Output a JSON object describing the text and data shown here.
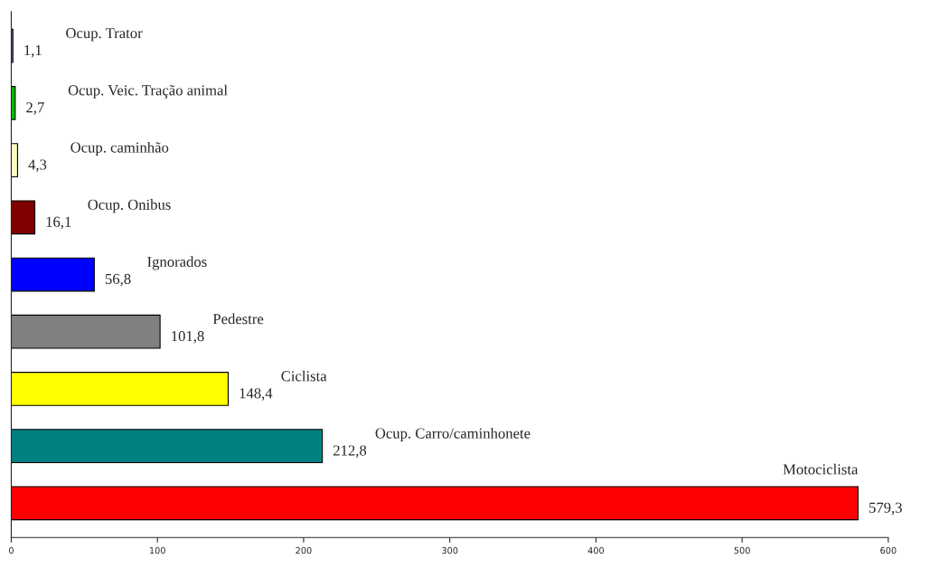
{
  "chart_data": {
    "type": "bar",
    "orientation": "horizontal",
    "categories": [
      "Ocup. Trator",
      "Ocup. Veic. Tração animal",
      "Ocup. caminhão",
      "Ocup. Onibus",
      "Ignorados",
      "Pedestre",
      "Ciclista",
      "Ocup. Carro/caminhonete",
      "Motociclista"
    ],
    "values": [
      1.1,
      2.7,
      4.3,
      16.1,
      56.8,
      101.8,
      148.4,
      212.8,
      579.3
    ],
    "colors": [
      "#7f60a0",
      "#00c000",
      "#ffffc0",
      "#800000",
      "#0000ff",
      "#808080",
      "#ffff00",
      "#008080",
      "#ff0000"
    ],
    "value_labels": [
      "1,1",
      "2,7",
      "4,3",
      "16,1",
      "56,8",
      "101,8",
      "148,4",
      "212,8",
      "579,3"
    ],
    "xlim": [
      0,
      600
    ],
    "xticks": [
      0,
      100,
      200,
      300,
      400,
      500,
      600
    ],
    "tick_labels": "x",
    "grid": false,
    "legend": false
  }
}
